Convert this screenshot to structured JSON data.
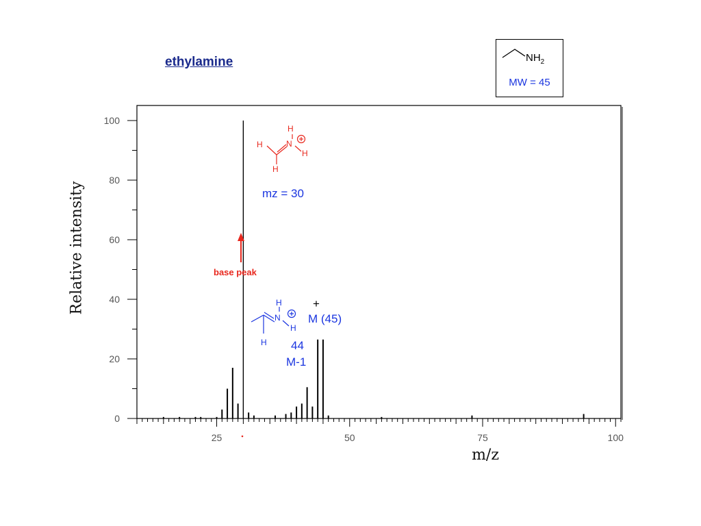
{
  "title": "ethylamine",
  "structure": {
    "label": "NH",
    "subscript": "2",
    "mw": "MW = 45"
  },
  "fragments": {
    "f30": {
      "mz_label": "mz = 30"
    },
    "f44": {
      "mass": "44",
      "label": "M-1"
    },
    "f45": {
      "label": "M (45)",
      "charge": "+"
    }
  },
  "annotations": {
    "base_peak": "base peak"
  },
  "colors": {
    "annotation_blue": "#1a35e0",
    "annotation_red": "#e8281e",
    "bars": "#000000"
  },
  "chart_data": {
    "type": "bar",
    "xlabel": "m/z",
    "ylabel": "Relative intensity",
    "xlim": [
      10,
      101
    ],
    "ylim": [
      0,
      100
    ],
    "x_ticks": [
      "25",
      "50",
      "75",
      "100"
    ],
    "y_ticks": [
      "0",
      "20",
      "40",
      "60",
      "80",
      "100"
    ],
    "series": [
      {
        "x": [
          15,
          18,
          21,
          22,
          25,
          26,
          27,
          28,
          29,
          30,
          31,
          32,
          36,
          38,
          39,
          40,
          41,
          42,
          43,
          44,
          45,
          46,
          56,
          73,
          94
        ],
        "values": [
          0.5,
          0.5,
          0.5,
          0.5,
          0.5,
          3,
          10,
          17,
          5,
          100,
          2,
          1,
          1,
          1.5,
          2,
          4,
          5,
          10.5,
          4,
          26.5,
          26.5,
          1,
          0.5,
          1,
          1.5
        ]
      }
    ]
  }
}
